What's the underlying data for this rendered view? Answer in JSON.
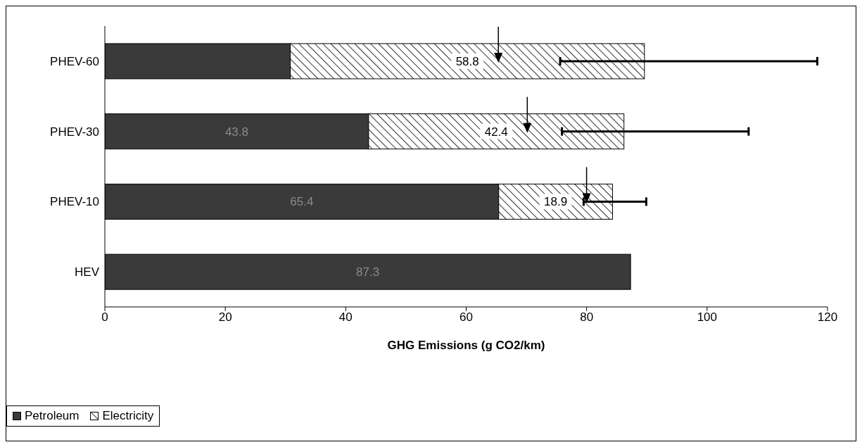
{
  "chart_data": {
    "type": "bar",
    "orientation": "horizontal",
    "stacked": true,
    "categories": [
      "PHEV-60",
      "PHEV-30",
      "PHEV-10",
      "HEV"
    ],
    "series": [
      {
        "name": "Petroleum",
        "color": "#3a3a3a",
        "values": [
          30.8,
          43.8,
          65.4,
          87.3
        ],
        "value_labels": [
          null,
          "43.8",
          "65.4",
          "87.3"
        ]
      },
      {
        "name": "Electricity",
        "color": "#ffffff",
        "values": [
          58.8,
          42.4,
          18.9,
          null
        ],
        "value_labels": [
          "58.8",
          "42.4",
          "18.9",
          null
        ],
        "errors": [
          [
            75.6,
            118.3
          ],
          [
            75.9,
            106.9
          ],
          [
            79.5,
            89.9
          ],
          null
        ]
      }
    ],
    "xlim": [
      0,
      120
    ],
    "xticks": [
      0,
      20,
      40,
      60,
      80,
      100,
      120
    ],
    "xlabel": "GHG Emissions (g CO2/km)",
    "grid": false,
    "legend": "bottom left"
  }
}
